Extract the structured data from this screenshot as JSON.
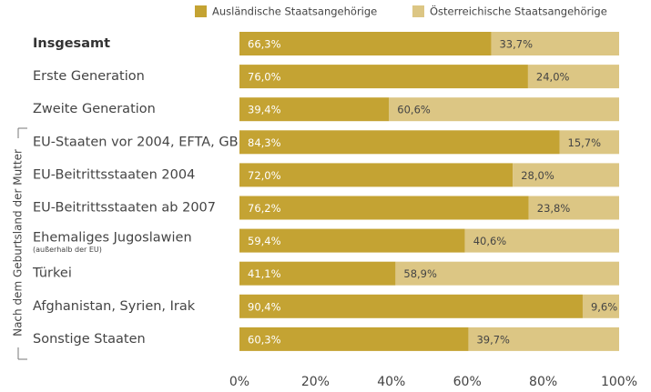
{
  "chart_data": {
    "type": "stacked-bar-horizontal",
    "y_axis_label": "Nach dem Geburtsland der Mutter",
    "categories": [
      "Insgesamt",
      "Erste Generation",
      "Zweite Generation",
      "EU-Staaten vor 2004, EFTA, GB",
      "EU-Beitrittsstaaten 2004",
      "EU-Beitrittsstaaten ab 2007",
      "Ehemaliges Jugoslawien",
      "Türkei",
      "Afghanistan, Syrien, Irak",
      "Sonstige Staaten"
    ],
    "category_notes": [
      null,
      null,
      null,
      null,
      null,
      null,
      "(außerhalb der EU)",
      null,
      null,
      null
    ],
    "series": [
      {
        "name": "Ausländische Staatsangehörige",
        "color": "#c4a333",
        "values": [
          66.3,
          76.0,
          39.4,
          84.3,
          72.0,
          76.2,
          59.4,
          41.1,
          90.4,
          60.3
        ],
        "value_labels": [
          "66,3%",
          "76,0%",
          "39,4%",
          "84,3%",
          "72,0%",
          "76,2%",
          "59,4%",
          "41,1%",
          "90,4%",
          "60,3%"
        ]
      },
      {
        "name": "Österreichische Staatsangehörige",
        "color": "#dcc684",
        "values": [
          33.7,
          24.0,
          60.6,
          15.7,
          28.0,
          23.8,
          40.6,
          58.9,
          9.6,
          39.7
        ],
        "value_labels": [
          "33,7%",
          "24,0%",
          "60,6%",
          "15,7%",
          "28,0%",
          "23,8%",
          "40,6%",
          "58,9%",
          "9,6%",
          "39,7%"
        ]
      }
    ],
    "xlim": [
      0,
      100
    ],
    "xticks": [
      {
        "value": 0,
        "label": "0%"
      },
      {
        "value": 20,
        "label": "20%"
      },
      {
        "value": 40,
        "label": "40%"
      },
      {
        "value": 60,
        "label": "60%"
      },
      {
        "value": 80,
        "label": "80%"
      },
      {
        "value": 100,
        "label": "100%"
      }
    ],
    "legend": "top"
  }
}
